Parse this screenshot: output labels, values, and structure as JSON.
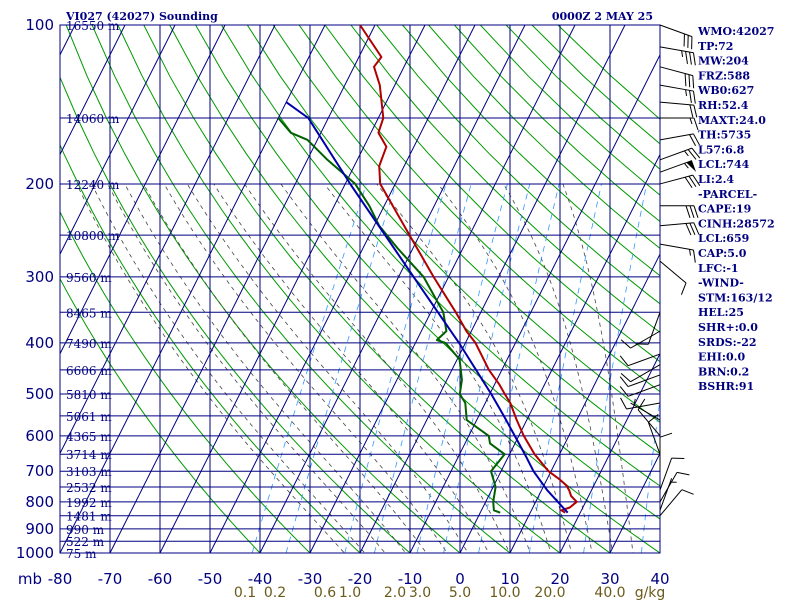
{
  "header": {
    "station_title": "VI027 (42027) Sounding",
    "valid_time": "0000Z  2 MAY 25"
  },
  "stats": [
    "WMO:42027",
    "TP:72",
    "MW:204",
    "FRZ:588",
    "WB0:627",
    "RH:52.4",
    "MAXT:24.0",
    "TH:5735",
    "L57:6.8",
    "LCL:744",
    "LI:2.4",
    "-PARCEL-",
    "CAPE:19",
    "CINH:28572",
    "LCL:659",
    "CAP:5.0",
    "LFC:-1",
    "-WIND-",
    "STM:163/12",
    "HEL:25",
    "SHR+:0.0",
    "SRDS:-22",
    "EHI:0.0",
    "BRN:0.2",
    "BSHR:91"
  ],
  "colors": {
    "grid": "#000080",
    "dry_adiabat": "#009900",
    "moist_adiabat": "#444444",
    "mixing_ratio": "#3399ff",
    "temperature": "#b00000",
    "dewpoint": "#006000",
    "parcel": "#0000aa",
    "wind_barb": "#000000",
    "mixing_label": "#6a5a1a"
  },
  "chart_data": {
    "type": "line",
    "subtype": "skew-T log-P sounding",
    "y_axis_label": "mb",
    "x_axis_unit": "C",
    "pressure_levels": [
      100,
      200,
      300,
      400,
      500,
      600,
      700,
      800,
      900,
      1000
    ],
    "temperature_ticks": [
      -80,
      -70,
      -60,
      -50,
      -40,
      -30,
      -20,
      -10,
      0,
      10,
      20,
      30,
      40
    ],
    "height_labels": [
      {
        "p": 100,
        "label": "16550 m"
      },
      {
        "p": 150,
        "label": "14060 m"
      },
      {
        "p": 200,
        "label": "12240 m"
      },
      {
        "p": 250,
        "label": "10800 m"
      },
      {
        "p": 300,
        "label": "9560 m"
      },
      {
        "p": 350,
        "label": "8465 m"
      },
      {
        "p": 400,
        "label": "7490 m"
      },
      {
        "p": 450,
        "label": "6606 m"
      },
      {
        "p": 500,
        "label": "5810 m"
      },
      {
        "p": 550,
        "label": "5061 m"
      },
      {
        "p": 600,
        "label": "4365 m"
      },
      {
        "p": 650,
        "label": "3714 m"
      },
      {
        "p": 700,
        "label": "3103 m"
      },
      {
        "p": 750,
        "label": "2532 m"
      },
      {
        "p": 800,
        "label": "1992 m"
      },
      {
        "p": 850,
        "label": "1481 m"
      },
      {
        "p": 900,
        "label": "990 m"
      },
      {
        "p": 950,
        "label": "522 m"
      },
      {
        "p": 1000,
        "label": "75 m"
      }
    ],
    "mixing_ratio_labels": [
      "0.1",
      "0.2",
      "0.6",
      "1.0",
      "2.0",
      "3.0",
      "5.0",
      "10.0",
      "20.0",
      "40.0",
      "g/kg"
    ],
    "mixing_ratio_positions_c": [
      -83,
      -77,
      -67,
      -62,
      -53,
      -48,
      -40,
      -31,
      -22,
      -10
    ],
    "series": [
      {
        "name": "Temperature",
        "points": [
          [
            839,
            17
          ],
          [
            830,
            16
          ],
          [
            820,
            17.4
          ],
          [
            800,
            18.2
          ],
          [
            780,
            16.5
          ],
          [
            760,
            15.5
          ],
          [
            745,
            14.5
          ],
          [
            725,
            12.5
          ],
          [
            700,
            9.5
          ],
          [
            650,
            5
          ],
          [
            600,
            1
          ],
          [
            560,
            -2
          ],
          [
            520,
            -5
          ],
          [
            500,
            -7
          ],
          [
            480,
            -9
          ],
          [
            450,
            -12.6
          ],
          [
            400,
            -18
          ],
          [
            380,
            -21
          ],
          [
            350,
            -25
          ],
          [
            300,
            -33
          ],
          [
            250,
            -42
          ],
          [
            200,
            -53
          ],
          [
            185,
            -55
          ],
          [
            170,
            -55.5
          ],
          [
            165,
            -57
          ],
          [
            160,
            -58.5
          ],
          [
            150,
            -59
          ],
          [
            130,
            -63
          ],
          [
            120,
            -66
          ],
          [
            115,
            -65.5
          ],
          [
            100,
            -73
          ]
        ]
      },
      {
        "name": "Dewpoint",
        "points": [
          [
            839,
            4
          ],
          [
            830,
            2.5
          ],
          [
            800,
            1.5
          ],
          [
            750,
            0.5
          ],
          [
            700,
            -2
          ],
          [
            650,
            -1
          ],
          [
            620,
            -5
          ],
          [
            600,
            -6
          ],
          [
            560,
            -12
          ],
          [
            520,
            -14
          ],
          [
            500,
            -16
          ],
          [
            470,
            -17
          ],
          [
            430,
            -19.5
          ],
          [
            400,
            -24
          ],
          [
            395,
            -26
          ],
          [
            380,
            -25
          ],
          [
            350,
            -27.5
          ],
          [
            300,
            -35
          ],
          [
            265,
            -43
          ],
          [
            240,
            -49
          ],
          [
            220,
            -53
          ],
          [
            200,
            -58
          ],
          [
            180,
            -66
          ],
          [
            165,
            -72
          ],
          [
            160,
            -76
          ],
          [
            150,
            -80
          ]
        ]
      },
      {
        "name": "Parcel",
        "points": [
          [
            839,
            17.5
          ],
          [
            760,
            11.1
          ],
          [
            700,
            6.5
          ],
          [
            659,
            3.7
          ],
          [
            600,
            -0.8
          ],
          [
            550,
            -5
          ],
          [
            500,
            -9.7
          ],
          [
            400,
            -21.3
          ],
          [
            300,
            -37
          ],
          [
            200,
            -59
          ],
          [
            150,
            -74
          ],
          [
            140,
            -80
          ]
        ]
      }
    ],
    "wind_profile": [
      {
        "p": 100,
        "dir": 110,
        "spd": 30
      },
      {
        "p": 110,
        "dir": 100,
        "spd": 35
      },
      {
        "p": 120,
        "dir": 105,
        "spd": 30
      },
      {
        "p": 130,
        "dir": 100,
        "spd": 25
      },
      {
        "p": 140,
        "dir": 95,
        "spd": 20
      },
      {
        "p": 150,
        "dir": 90,
        "spd": 15
      },
      {
        "p": 165,
        "dir": 80,
        "spd": 20
      },
      {
        "p": 180,
        "dir": 70,
        "spd": 25
      },
      {
        "p": 190,
        "dir": 70,
        "spd": 55
      },
      {
        "p": 200,
        "dir": 75,
        "spd": 30
      },
      {
        "p": 220,
        "dir": 90,
        "spd": 30
      },
      {
        "p": 240,
        "dir": 85,
        "spd": 30
      },
      {
        "p": 260,
        "dir": 100,
        "spd": 15
      },
      {
        "p": 280,
        "dir": 130,
        "spd": 10
      },
      {
        "p": 350,
        "dir": 200,
        "spd": 10
      },
      {
        "p": 380,
        "dir": 240,
        "spd": 10
      },
      {
        "p": 420,
        "dir": 250,
        "spd": 10
      },
      {
        "p": 440,
        "dir": 240,
        "spd": 10
      },
      {
        "p": 460,
        "dir": 250,
        "spd": 10
      },
      {
        "p": 480,
        "dir": 250,
        "spd": 10
      },
      {
        "p": 520,
        "dir": 260,
        "spd": 10
      },
      {
        "p": 560,
        "dir": 300,
        "spd": 5
      },
      {
        "p": 600,
        "dir": 320,
        "spd": 10
      },
      {
        "p": 650,
        "dir": 340,
        "spd": 10
      },
      {
        "p": 700,
        "dir": 0,
        "spd": 10
      },
      {
        "p": 760,
        "dir": 20,
        "spd": 10
      },
      {
        "p": 800,
        "dir": 30,
        "spd": 10
      },
      {
        "p": 830,
        "dir": 20,
        "spd": 5
      },
      {
        "p": 850,
        "dir": 40,
        "spd": 10
      }
    ]
  }
}
